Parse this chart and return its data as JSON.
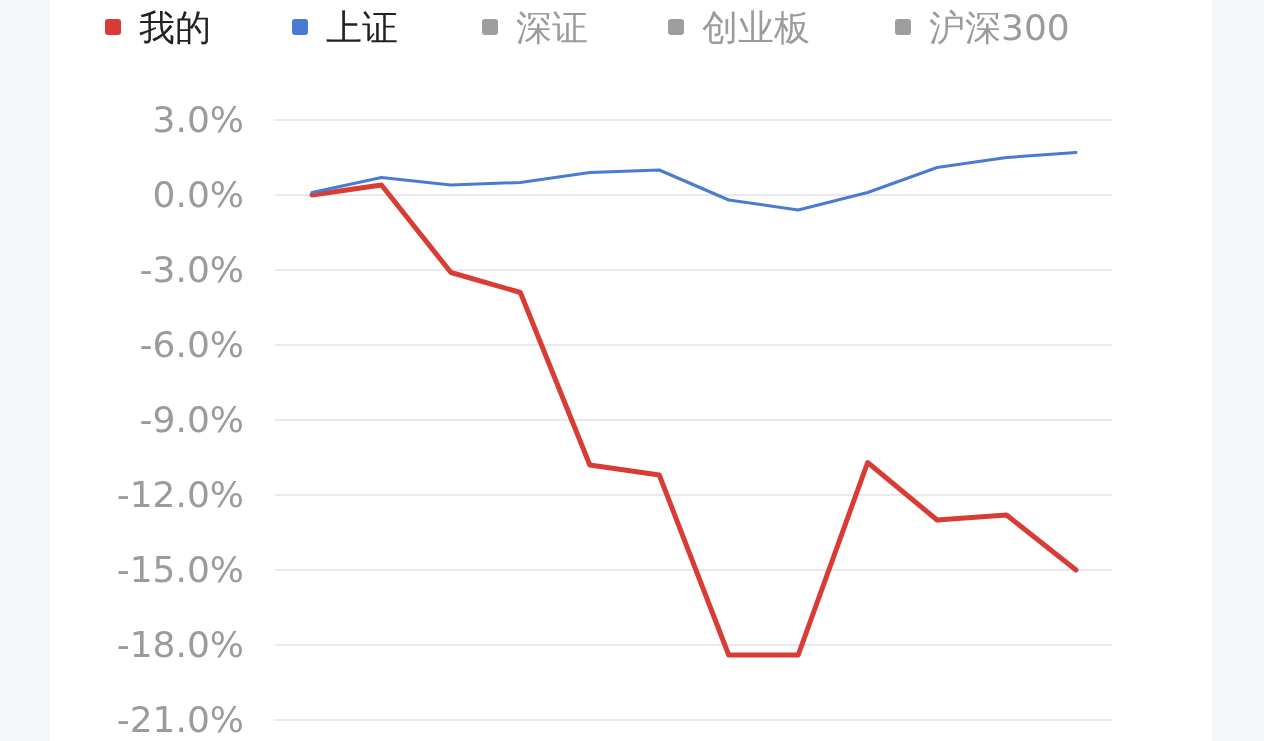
{
  "chart_data": {
    "type": "line",
    "categories": [
      null,
      null,
      null,
      null,
      null,
      null,
      null,
      null,
      null,
      null,
      null,
      null
    ],
    "series": [
      {
        "name": "我的",
        "color": "#d83c35",
        "values": [
          0.0,
          0.4,
          -3.1,
          -3.9,
          -10.8,
          -11.2,
          -18.4,
          -18.4,
          -10.7,
          -13.0,
          -12.8,
          -15.0
        ]
      },
      {
        "name": "上证",
        "color": "#4a7bd2",
        "values": [
          0.1,
          0.7,
          0.4,
          0.5,
          0.9,
          1.0,
          -0.2,
          -0.6,
          0.1,
          1.1,
          1.5,
          1.7
        ]
      },
      {
        "name": "深证",
        "color": "#9e9e9e",
        "values": [
          null,
          null,
          null,
          null,
          null,
          null,
          null,
          null,
          null,
          null,
          null,
          null
        ]
      },
      {
        "name": "创业板",
        "color": "#9e9e9e",
        "values": [
          null,
          null,
          null,
          null,
          null,
          null,
          null,
          null,
          null,
          null,
          null,
          null
        ]
      },
      {
        "name": "沪深300",
        "color": "#9e9e9e",
        "values": [
          null,
          null,
          null,
          null,
          null,
          null,
          null,
          null,
          null,
          null,
          null,
          null
        ]
      }
    ],
    "ylim": [
      -21,
      3
    ],
    "yticks": [
      {
        "value": 3,
        "label": "3.0%"
      },
      {
        "value": 0,
        "label": "0.0%"
      },
      {
        "value": -3,
        "label": "-3.0%"
      },
      {
        "value": -6,
        "label": "-6.0%"
      },
      {
        "value": -9,
        "label": "-9.0%"
      },
      {
        "value": -12,
        "label": "-12.0%"
      },
      {
        "value": -15,
        "label": "-15.0%"
      },
      {
        "value": -18,
        "label": "-18.0%"
      },
      {
        "value": -21,
        "label": "-21.0%"
      }
    ],
    "grid": "y",
    "legend": "top",
    "marker": "none",
    "line_style": "solid",
    "tick_labels": "y"
  }
}
